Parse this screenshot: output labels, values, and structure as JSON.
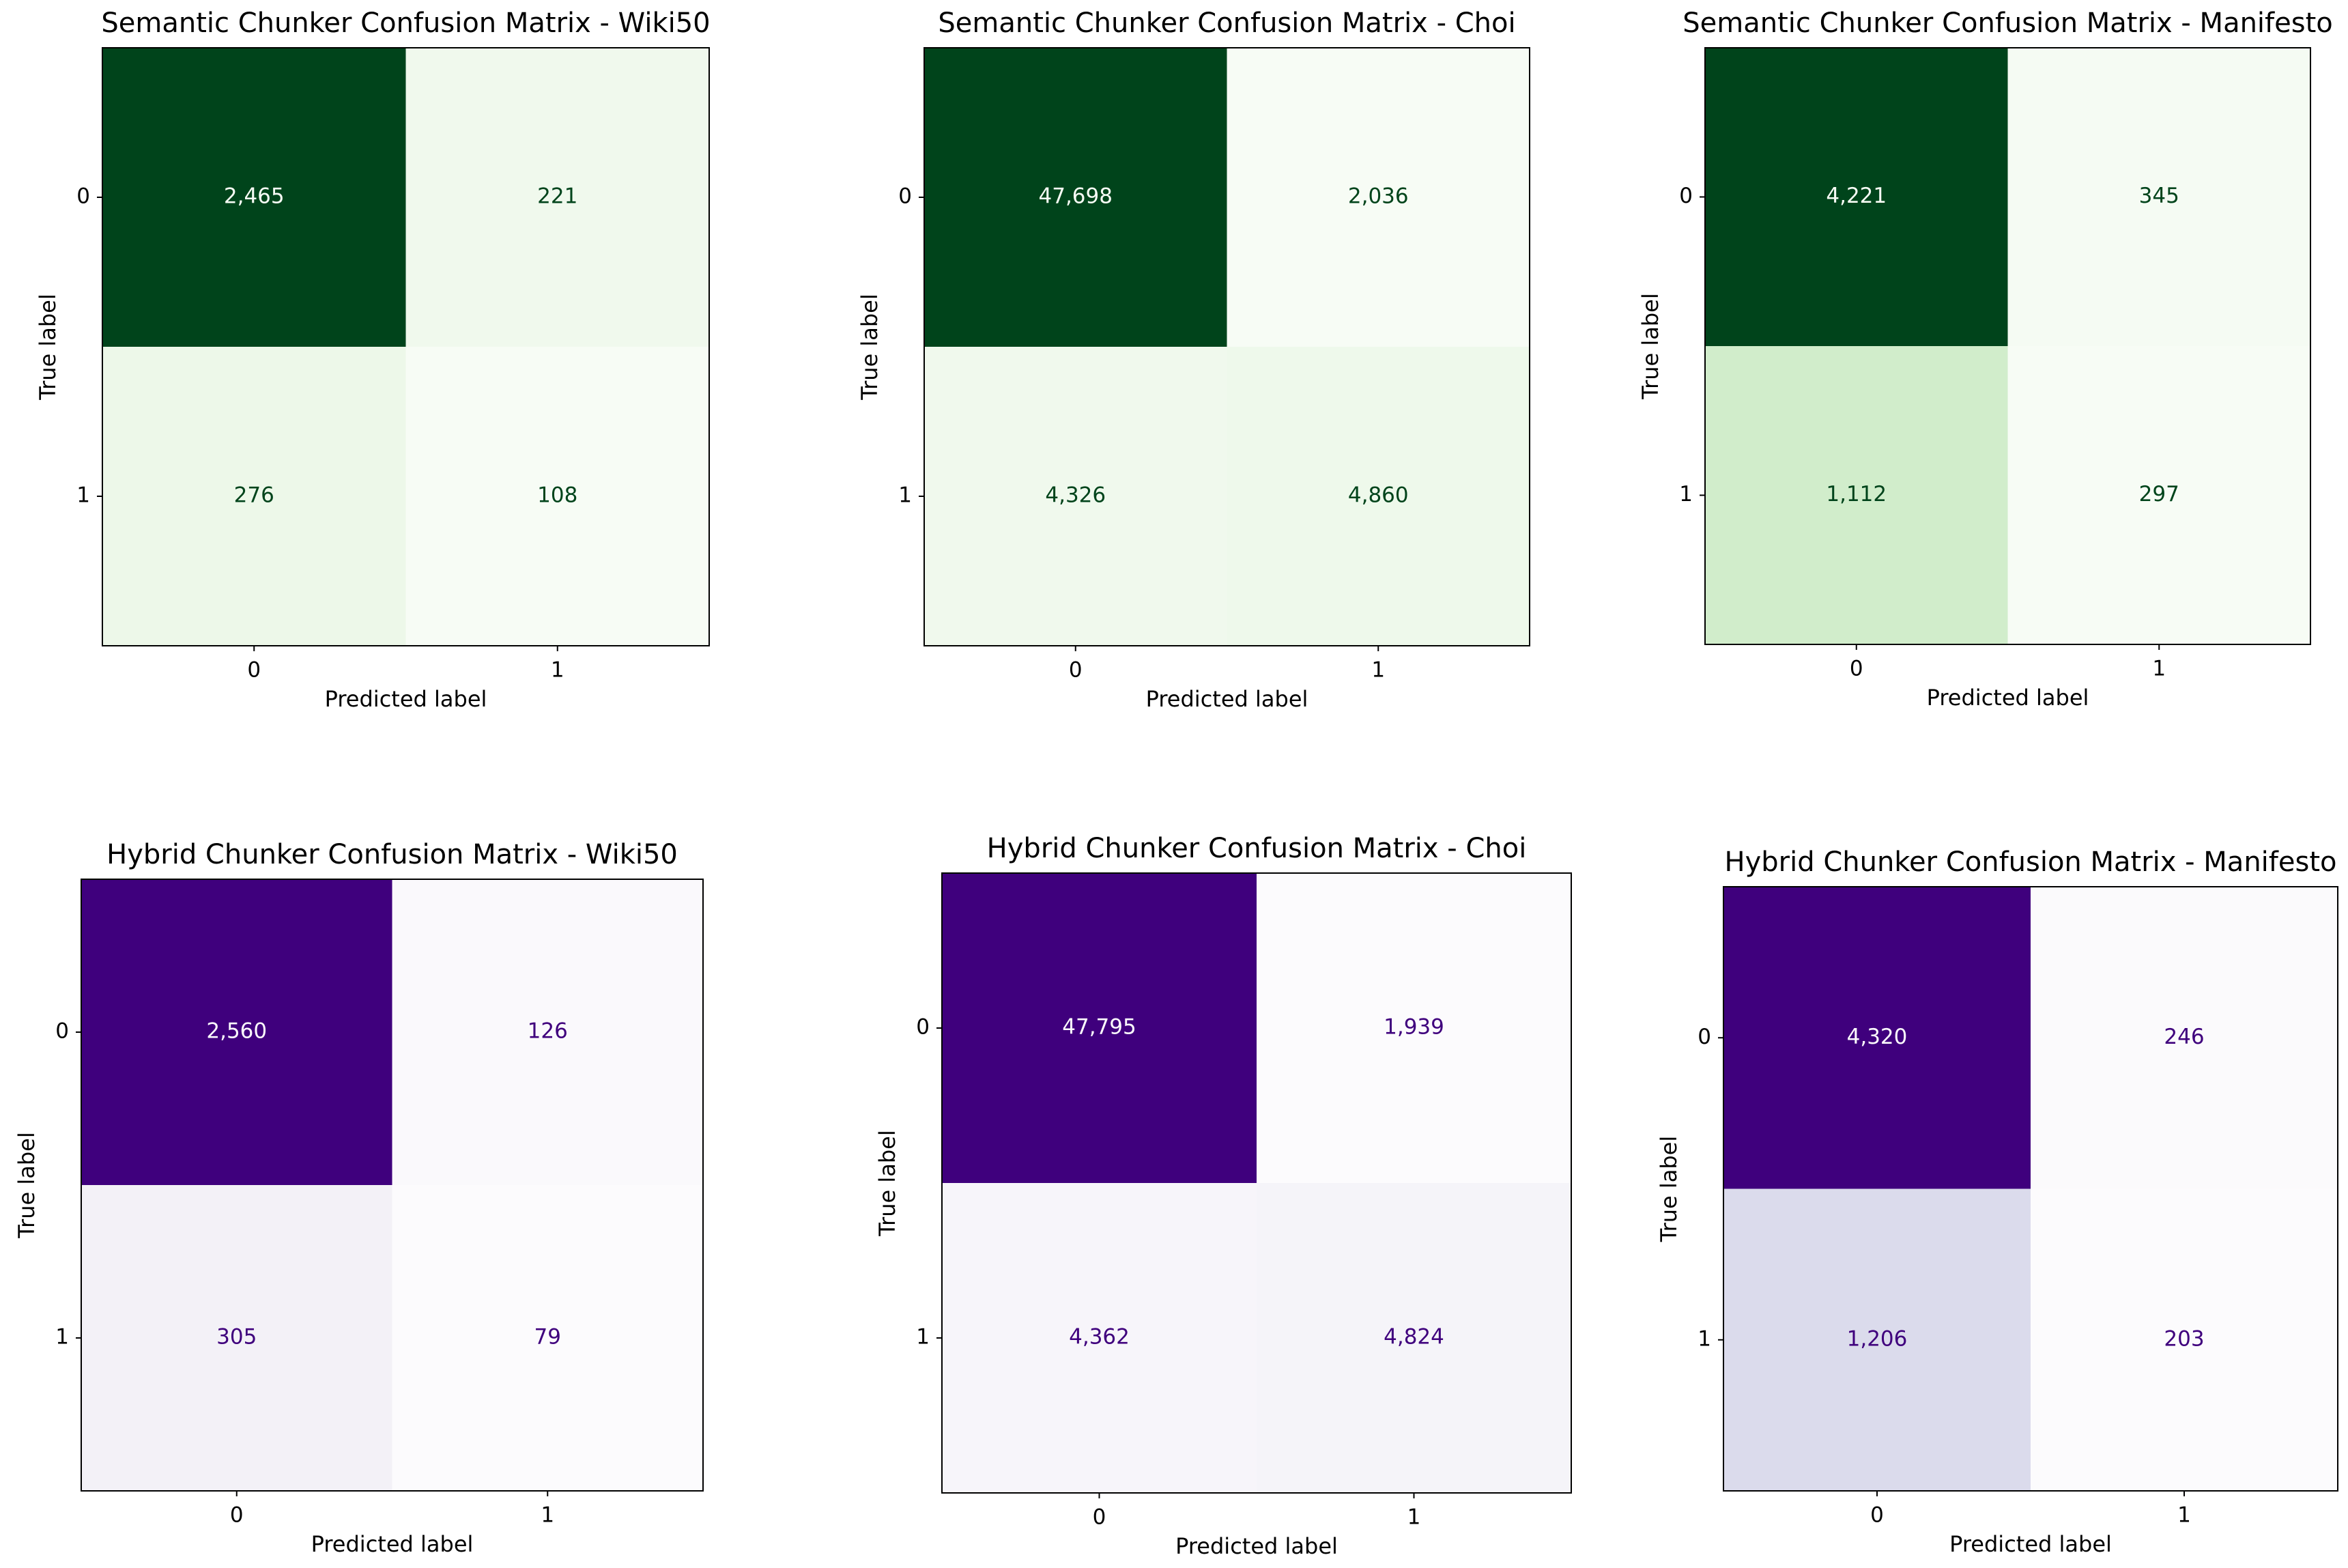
{
  "chart_data": [
    {
      "type": "heatmap",
      "title": "Semantic Chunker Confusion Matrix - Wiki50",
      "xlabel": "Predicted label",
      "ylabel": "True label",
      "x_categories": [
        "0",
        "1"
      ],
      "y_categories": [
        "0",
        "1"
      ],
      "values": [
        [
          2465,
          221
        ],
        [
          276,
          108
        ]
      ],
      "value_labels": [
        [
          "2,465",
          "221"
        ],
        [
          "276",
          "108"
        ]
      ],
      "colormap": [
        "#f7fcf5",
        "#e5f5e0",
        "#c7e9c0",
        "#a1d99b",
        "#74c476",
        "#41ab5d",
        "#238b45",
        "#006d2c",
        "#00441b"
      ]
    },
    {
      "type": "heatmap",
      "title": "Semantic Chunker Confusion Matrix - Choi",
      "xlabel": "Predicted label",
      "ylabel": "True label",
      "x_categories": [
        "0",
        "1"
      ],
      "y_categories": [
        "0",
        "1"
      ],
      "values": [
        [
          47698,
          2036
        ],
        [
          4326,
          4860
        ]
      ],
      "value_labels": [
        [
          "47,698",
          "2,036"
        ],
        [
          "4,326",
          "4,860"
        ]
      ],
      "colormap": [
        "#f7fcf5",
        "#e5f5e0",
        "#c7e9c0",
        "#a1d99b",
        "#74c476",
        "#41ab5d",
        "#238b45",
        "#006d2c",
        "#00441b"
      ]
    },
    {
      "type": "heatmap",
      "title": "Semantic Chunker Confusion Matrix - Manifesto",
      "xlabel": "Predicted label",
      "ylabel": "True label",
      "x_categories": [
        "0",
        "1"
      ],
      "y_categories": [
        "0",
        "1"
      ],
      "values": [
        [
          4221,
          345
        ],
        [
          1112,
          297
        ]
      ],
      "value_labels": [
        [
          "4,221",
          "345"
        ],
        [
          "1,112",
          "297"
        ]
      ],
      "colormap": [
        "#f7fcf5",
        "#e5f5e0",
        "#c7e9c0",
        "#a1d99b",
        "#74c476",
        "#41ab5d",
        "#238b45",
        "#006d2c",
        "#00441b"
      ]
    },
    {
      "type": "heatmap",
      "title": "Hybrid Chunker Confusion Matrix - Wiki50",
      "xlabel": "Predicted label",
      "ylabel": "True label",
      "x_categories": [
        "0",
        "1"
      ],
      "y_categories": [
        "0",
        "1"
      ],
      "values": [
        [
          2560,
          126
        ],
        [
          305,
          79
        ]
      ],
      "value_labels": [
        [
          "2,560",
          "126"
        ],
        [
          "305",
          "79"
        ]
      ],
      "colormap": [
        "#fcfbfd",
        "#efedf5",
        "#dadaeb",
        "#bcbddc",
        "#9e9ac8",
        "#807dba",
        "#6a51a3",
        "#54278f",
        "#3f007d"
      ]
    },
    {
      "type": "heatmap",
      "title": "Hybrid Chunker Confusion Matrix - Choi",
      "xlabel": "Predicted label",
      "ylabel": "True label",
      "x_categories": [
        "0",
        "1"
      ],
      "y_categories": [
        "0",
        "1"
      ],
      "values": [
        [
          47795,
          1939
        ],
        [
          4362,
          4824
        ]
      ],
      "value_labels": [
        [
          "47,795",
          "1,939"
        ],
        [
          "4,362",
          "4,824"
        ]
      ],
      "colormap": [
        "#fcfbfd",
        "#efedf5",
        "#dadaeb",
        "#bcbddc",
        "#9e9ac8",
        "#807dba",
        "#6a51a3",
        "#54278f",
        "#3f007d"
      ]
    },
    {
      "type": "heatmap",
      "title": "Hybrid Chunker Confusion Matrix - Manifesto",
      "xlabel": "Predicted label",
      "ylabel": "True label",
      "x_categories": [
        "0",
        "1"
      ],
      "y_categories": [
        "0",
        "1"
      ],
      "values": [
        [
          4320,
          246
        ],
        [
          1206,
          203
        ]
      ],
      "value_labels": [
        [
          "4,320",
          "246"
        ],
        [
          "1,206",
          "203"
        ]
      ],
      "colormap": [
        "#fcfbfd",
        "#efedf5",
        "#dadaeb",
        "#bcbddc",
        "#9e9ac8",
        "#807dba",
        "#6a51a3",
        "#54278f",
        "#3f007d"
      ]
    }
  ]
}
